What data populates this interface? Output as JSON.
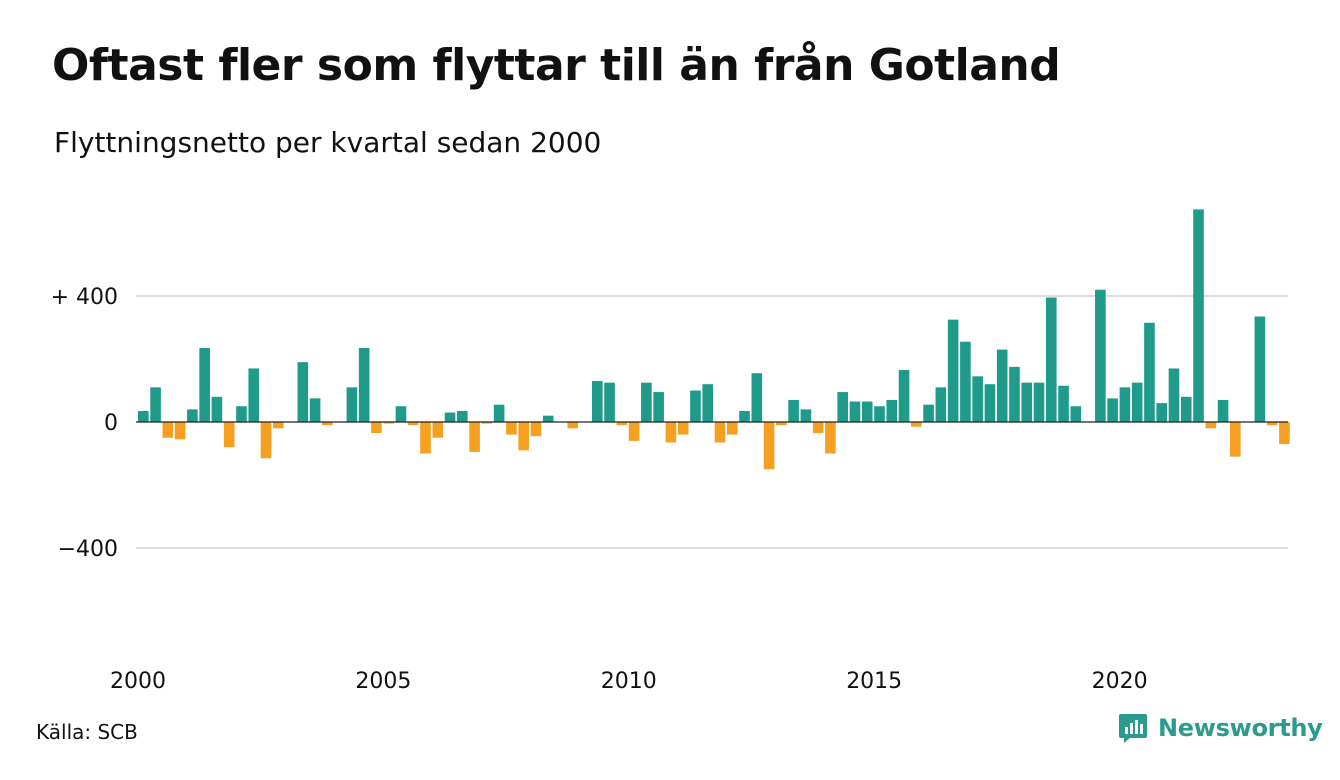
{
  "title": "Oftast fler som flyttar till än från Gotland",
  "subtitle": "Flyttningsnetto per kvartal sedan 2000",
  "source": "Källa: SCB",
  "brand": {
    "name": "Newsworthy",
    "icon": "newsworthy-logo-icon"
  },
  "colors": {
    "positive": "#1f9a8b",
    "negative": "#f5a021",
    "grid": "#dddddd",
    "zero_line": "#222222"
  },
  "chart_data": {
    "type": "bar",
    "title": "Oftast fler som flyttar till än från Gotland",
    "subtitle": "Flyttningsnetto per kvartal sedan 2000",
    "xlabel": "",
    "ylabel": "",
    "ylim": [
      -600,
      700
    ],
    "grid": true,
    "y_ticks": [
      {
        "value": 400,
        "label": "+ 400"
      },
      {
        "value": 0,
        "label": "0"
      },
      {
        "value": -400,
        "label": "−400"
      }
    ],
    "x_ticks": [
      {
        "year": 2000,
        "label": "2000"
      },
      {
        "year": 2005,
        "label": "2005"
      },
      {
        "year": 2010,
        "label": "2010"
      },
      {
        "year": 2015,
        "label": "2015"
      },
      {
        "year": 2020,
        "label": "2020"
      }
    ],
    "start": "2000 Q1",
    "series": [
      {
        "values": [
          35,
          110,
          -50,
          -55,
          40,
          235,
          80,
          -80,
          50,
          170,
          -115,
          -20,
          0,
          190,
          75,
          -10,
          0,
          110,
          235,
          -35,
          -5,
          50,
          -10,
          -100,
          -50,
          30,
          35,
          -95,
          -5,
          55,
          -40,
          -90,
          -45,
          20,
          0,
          -20,
          0,
          130,
          125,
          -10,
          -60,
          125,
          95,
          -65,
          -40,
          100,
          120,
          -65,
          -40,
          35,
          155,
          -150,
          -10,
          70,
          40,
          -35,
          -100,
          95,
          65,
          65,
          50,
          70,
          165,
          -15,
          55,
          110,
          325,
          255,
          145,
          120,
          230,
          175,
          125,
          125,
          395,
          115,
          50,
          0,
          420,
          75,
          110,
          125,
          315,
          60,
          170,
          80,
          675,
          -20,
          70,
          -110,
          0,
          335,
          -10,
          -70
        ]
      }
    ]
  }
}
